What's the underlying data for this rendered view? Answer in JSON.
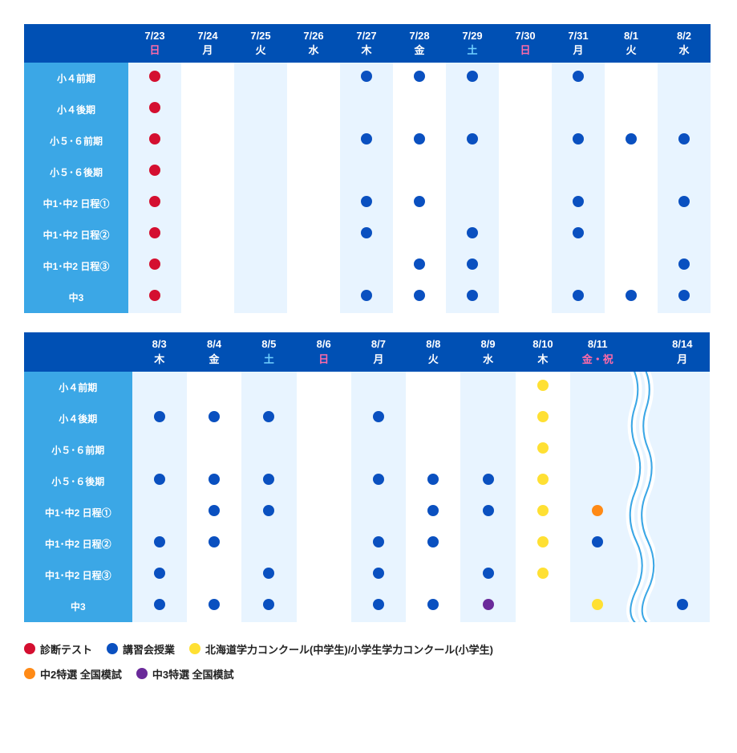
{
  "colors": {
    "header_bg": "#0050b4",
    "rowhead_bg": "#3ba7e6",
    "weekday_text": "#ffffff",
    "sunday_text": "#ff6aa8",
    "saturday_text": "#6fd0ff",
    "holiday_text": "#ff6aa8",
    "alt_cell_bg": "#e8f4ff",
    "cell_bg": "#ffffff",
    "dot_red": "#d40f30",
    "dot_blue": "#0a50c0",
    "dot_yellow": "#ffe033",
    "dot_orange": "#ff8a16",
    "dot_purple": "#6a2a9a"
  },
  "row_labels": [
    "小４前期",
    "小４後期",
    "小５･６前期",
    "小５･６後期",
    "中1･中2 日程①",
    "中1･中2 日程②",
    "中1･中2 日程③",
    "中3"
  ],
  "table1": {
    "columns": [
      {
        "date": "7/23",
        "day": "日",
        "type": "sun"
      },
      {
        "date": "7/24",
        "day": "月",
        "type": "wd"
      },
      {
        "date": "7/25",
        "day": "火",
        "type": "wd"
      },
      {
        "date": "7/26",
        "day": "水",
        "type": "wd"
      },
      {
        "date": "7/27",
        "day": "木",
        "type": "wd"
      },
      {
        "date": "7/28",
        "day": "金",
        "type": "wd"
      },
      {
        "date": "7/29",
        "day": "土",
        "type": "sat"
      },
      {
        "date": "7/30",
        "day": "日",
        "type": "sun"
      },
      {
        "date": "7/31",
        "day": "月",
        "type": "wd"
      },
      {
        "date": "8/1",
        "day": "火",
        "type": "wd"
      },
      {
        "date": "8/2",
        "day": "水",
        "type": "wd"
      }
    ],
    "cells": [
      [
        "red",
        "",
        "",
        "",
        "blue",
        "blue",
        "blue",
        "",
        "blue",
        "",
        ""
      ],
      [
        "red",
        "",
        "",
        "",
        "",
        "",
        "",
        "",
        "",
        "",
        ""
      ],
      [
        "red",
        "",
        "",
        "",
        "blue",
        "blue",
        "blue",
        "",
        "blue",
        "blue",
        "blue"
      ],
      [
        "red",
        "",
        "",
        "",
        "",
        "",
        "",
        "",
        "",
        "",
        ""
      ],
      [
        "red",
        "",
        "",
        "",
        "blue",
        "blue",
        "",
        "",
        "blue",
        "",
        "blue"
      ],
      [
        "red",
        "",
        "",
        "",
        "blue",
        "",
        "blue",
        "",
        "blue",
        "",
        ""
      ],
      [
        "red",
        "",
        "",
        "",
        "",
        "blue",
        "blue",
        "",
        "",
        "",
        "blue"
      ],
      [
        "red",
        "",
        "",
        "",
        "blue",
        "blue",
        "blue",
        "",
        "blue",
        "blue",
        "blue"
      ]
    ]
  },
  "table2": {
    "columns": [
      {
        "date": "8/3",
        "day": "木",
        "type": "wd"
      },
      {
        "date": "8/4",
        "day": "金",
        "type": "wd"
      },
      {
        "date": "8/5",
        "day": "土",
        "type": "sat"
      },
      {
        "date": "8/6",
        "day": "日",
        "type": "sun"
      },
      {
        "date": "8/7",
        "day": "月",
        "type": "wd"
      },
      {
        "date": "8/8",
        "day": "火",
        "type": "wd"
      },
      {
        "date": "8/9",
        "day": "水",
        "type": "wd"
      },
      {
        "date": "8/10",
        "day": "木",
        "type": "wd"
      },
      {
        "date": "8/11",
        "day": "金・祝",
        "type": "hol"
      },
      {
        "date": "",
        "day": "",
        "type": "break"
      },
      {
        "date": "8/14",
        "day": "月",
        "type": "wd"
      }
    ],
    "cells": [
      [
        "",
        "",
        "",
        "",
        "",
        "",
        "",
        "yellow",
        "",
        "break",
        ""
      ],
      [
        "blue",
        "blue",
        "blue",
        "",
        "blue",
        "",
        "",
        "yellow",
        "",
        "break",
        ""
      ],
      [
        "",
        "",
        "",
        "",
        "",
        "",
        "",
        "yellow",
        "",
        "break",
        ""
      ],
      [
        "blue",
        "blue",
        "blue",
        "",
        "blue",
        "blue",
        "blue",
        "yellow",
        "",
        "break",
        ""
      ],
      [
        "",
        "blue",
        "blue",
        "",
        "",
        "blue",
        "blue",
        "yellow",
        "orange",
        "break",
        ""
      ],
      [
        "blue",
        "blue",
        "",
        "",
        "blue",
        "blue",
        "",
        "yellow",
        "blue",
        "break",
        ""
      ],
      [
        "blue",
        "",
        "blue",
        "",
        "blue",
        "",
        "blue",
        "yellow",
        "",
        "break",
        ""
      ],
      [
        "blue",
        "blue",
        "blue",
        "",
        "blue",
        "blue",
        "purple",
        "",
        "yellow",
        "break",
        "blue"
      ]
    ]
  },
  "legend": [
    {
      "color": "red",
      "label": "診断テスト"
    },
    {
      "color": "blue",
      "label": "講習会授業"
    },
    {
      "color": "yellow",
      "label": "北海道学力コンクール(中学生)/小学生学力コンクール(小学生)"
    },
    {
      "color": "orange",
      "label": "中2特選 全国模試"
    },
    {
      "color": "purple",
      "label": "中3特選 全国模試"
    }
  ]
}
